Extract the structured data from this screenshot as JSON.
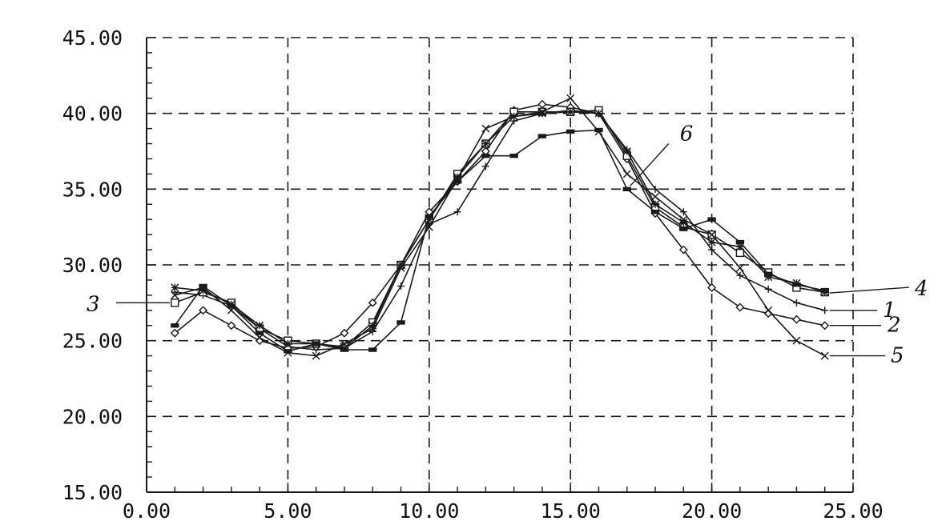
{
  "chart_data": {
    "type": "line",
    "title": "",
    "xlabel": "",
    "ylabel": "",
    "xlim": [
      0,
      25
    ],
    "ylim": [
      15,
      45
    ],
    "x_ticks": [
      "0.00",
      "5.00",
      "10.00",
      "15.00",
      "20.00",
      "25.00"
    ],
    "y_ticks": [
      "15.00",
      "20.00",
      "25.00",
      "30.00",
      "35.00",
      "40.00",
      "45.00"
    ],
    "x_tick_values": [
      0,
      5,
      10,
      15,
      20,
      25
    ],
    "y_tick_values": [
      15,
      20,
      25,
      30,
      35,
      40,
      45
    ],
    "grid": true,
    "grid_style": "dashed",
    "line_color": "#1a1a1a",
    "x": [
      1,
      2,
      3,
      4,
      5,
      6,
      7,
      8,
      9,
      10,
      11,
      12,
      13,
      14,
      15,
      16,
      17,
      18,
      19,
      20,
      21,
      22,
      23,
      24
    ],
    "series": [
      {
        "name": "1",
        "marker": "plus",
        "values": [
          28.2,
          28.0,
          27.3,
          25.8,
          24.6,
          24.4,
          24.5,
          25.6,
          28.6,
          32.7,
          33.5,
          36.5,
          39.5,
          40.0,
          40.2,
          40.0,
          37.6,
          35.0,
          33.5,
          31.0,
          29.3,
          28.4,
          27.5,
          27.0
        ]
      },
      {
        "name": "2",
        "marker": "diamond",
        "values": [
          25.5,
          27.0,
          26.0,
          25.0,
          24.5,
          24.6,
          25.5,
          27.5,
          30.0,
          33.5,
          35.5,
          37.5,
          40.2,
          40.6,
          40.4,
          40.0,
          37.0,
          33.4,
          31.0,
          28.5,
          27.2,
          26.8,
          26.4,
          26.0
        ]
      },
      {
        "name": "3",
        "marker": "square",
        "values": [
          27.5,
          28.2,
          27.5,
          25.8,
          25.0,
          24.8,
          24.6,
          26.2,
          30.0,
          33.0,
          36.0,
          38.0,
          40.1,
          40.1,
          40.1,
          40.2,
          37.2,
          33.8,
          32.5,
          32.0,
          30.8,
          29.5,
          28.5,
          28.2
        ]
      },
      {
        "name": "4",
        "marker": "asterisk",
        "values": [
          28.5,
          28.3,
          27.4,
          26.0,
          24.8,
          24.8,
          24.5,
          26.0,
          30.0,
          33.0,
          35.8,
          38.0,
          39.8,
          40.0,
          40.1,
          40.0,
          37.5,
          34.0,
          32.8,
          31.5,
          31.2,
          29.2,
          28.8,
          28.2
        ]
      },
      {
        "name": "5",
        "marker": "x",
        "values": [
          28.0,
          28.5,
          27.0,
          25.2,
          24.2,
          24.0,
          24.8,
          25.8,
          29.8,
          32.5,
          35.7,
          39.0,
          39.8,
          40.1,
          41.0,
          38.8,
          36.0,
          34.5,
          33.0,
          32.0,
          29.8,
          27.0,
          25.0,
          24.0
        ]
      },
      {
        "name": "6",
        "marker": "dash",
        "values": [
          26.0,
          28.6,
          27.3,
          25.5,
          24.3,
          24.8,
          24.4,
          24.4,
          26.2,
          33.2,
          35.5,
          37.2,
          37.2,
          38.5,
          38.8,
          38.9,
          35.0,
          33.5,
          32.4,
          33.0,
          31.5,
          29.4,
          28.7,
          28.3
        ]
      }
    ]
  }
}
